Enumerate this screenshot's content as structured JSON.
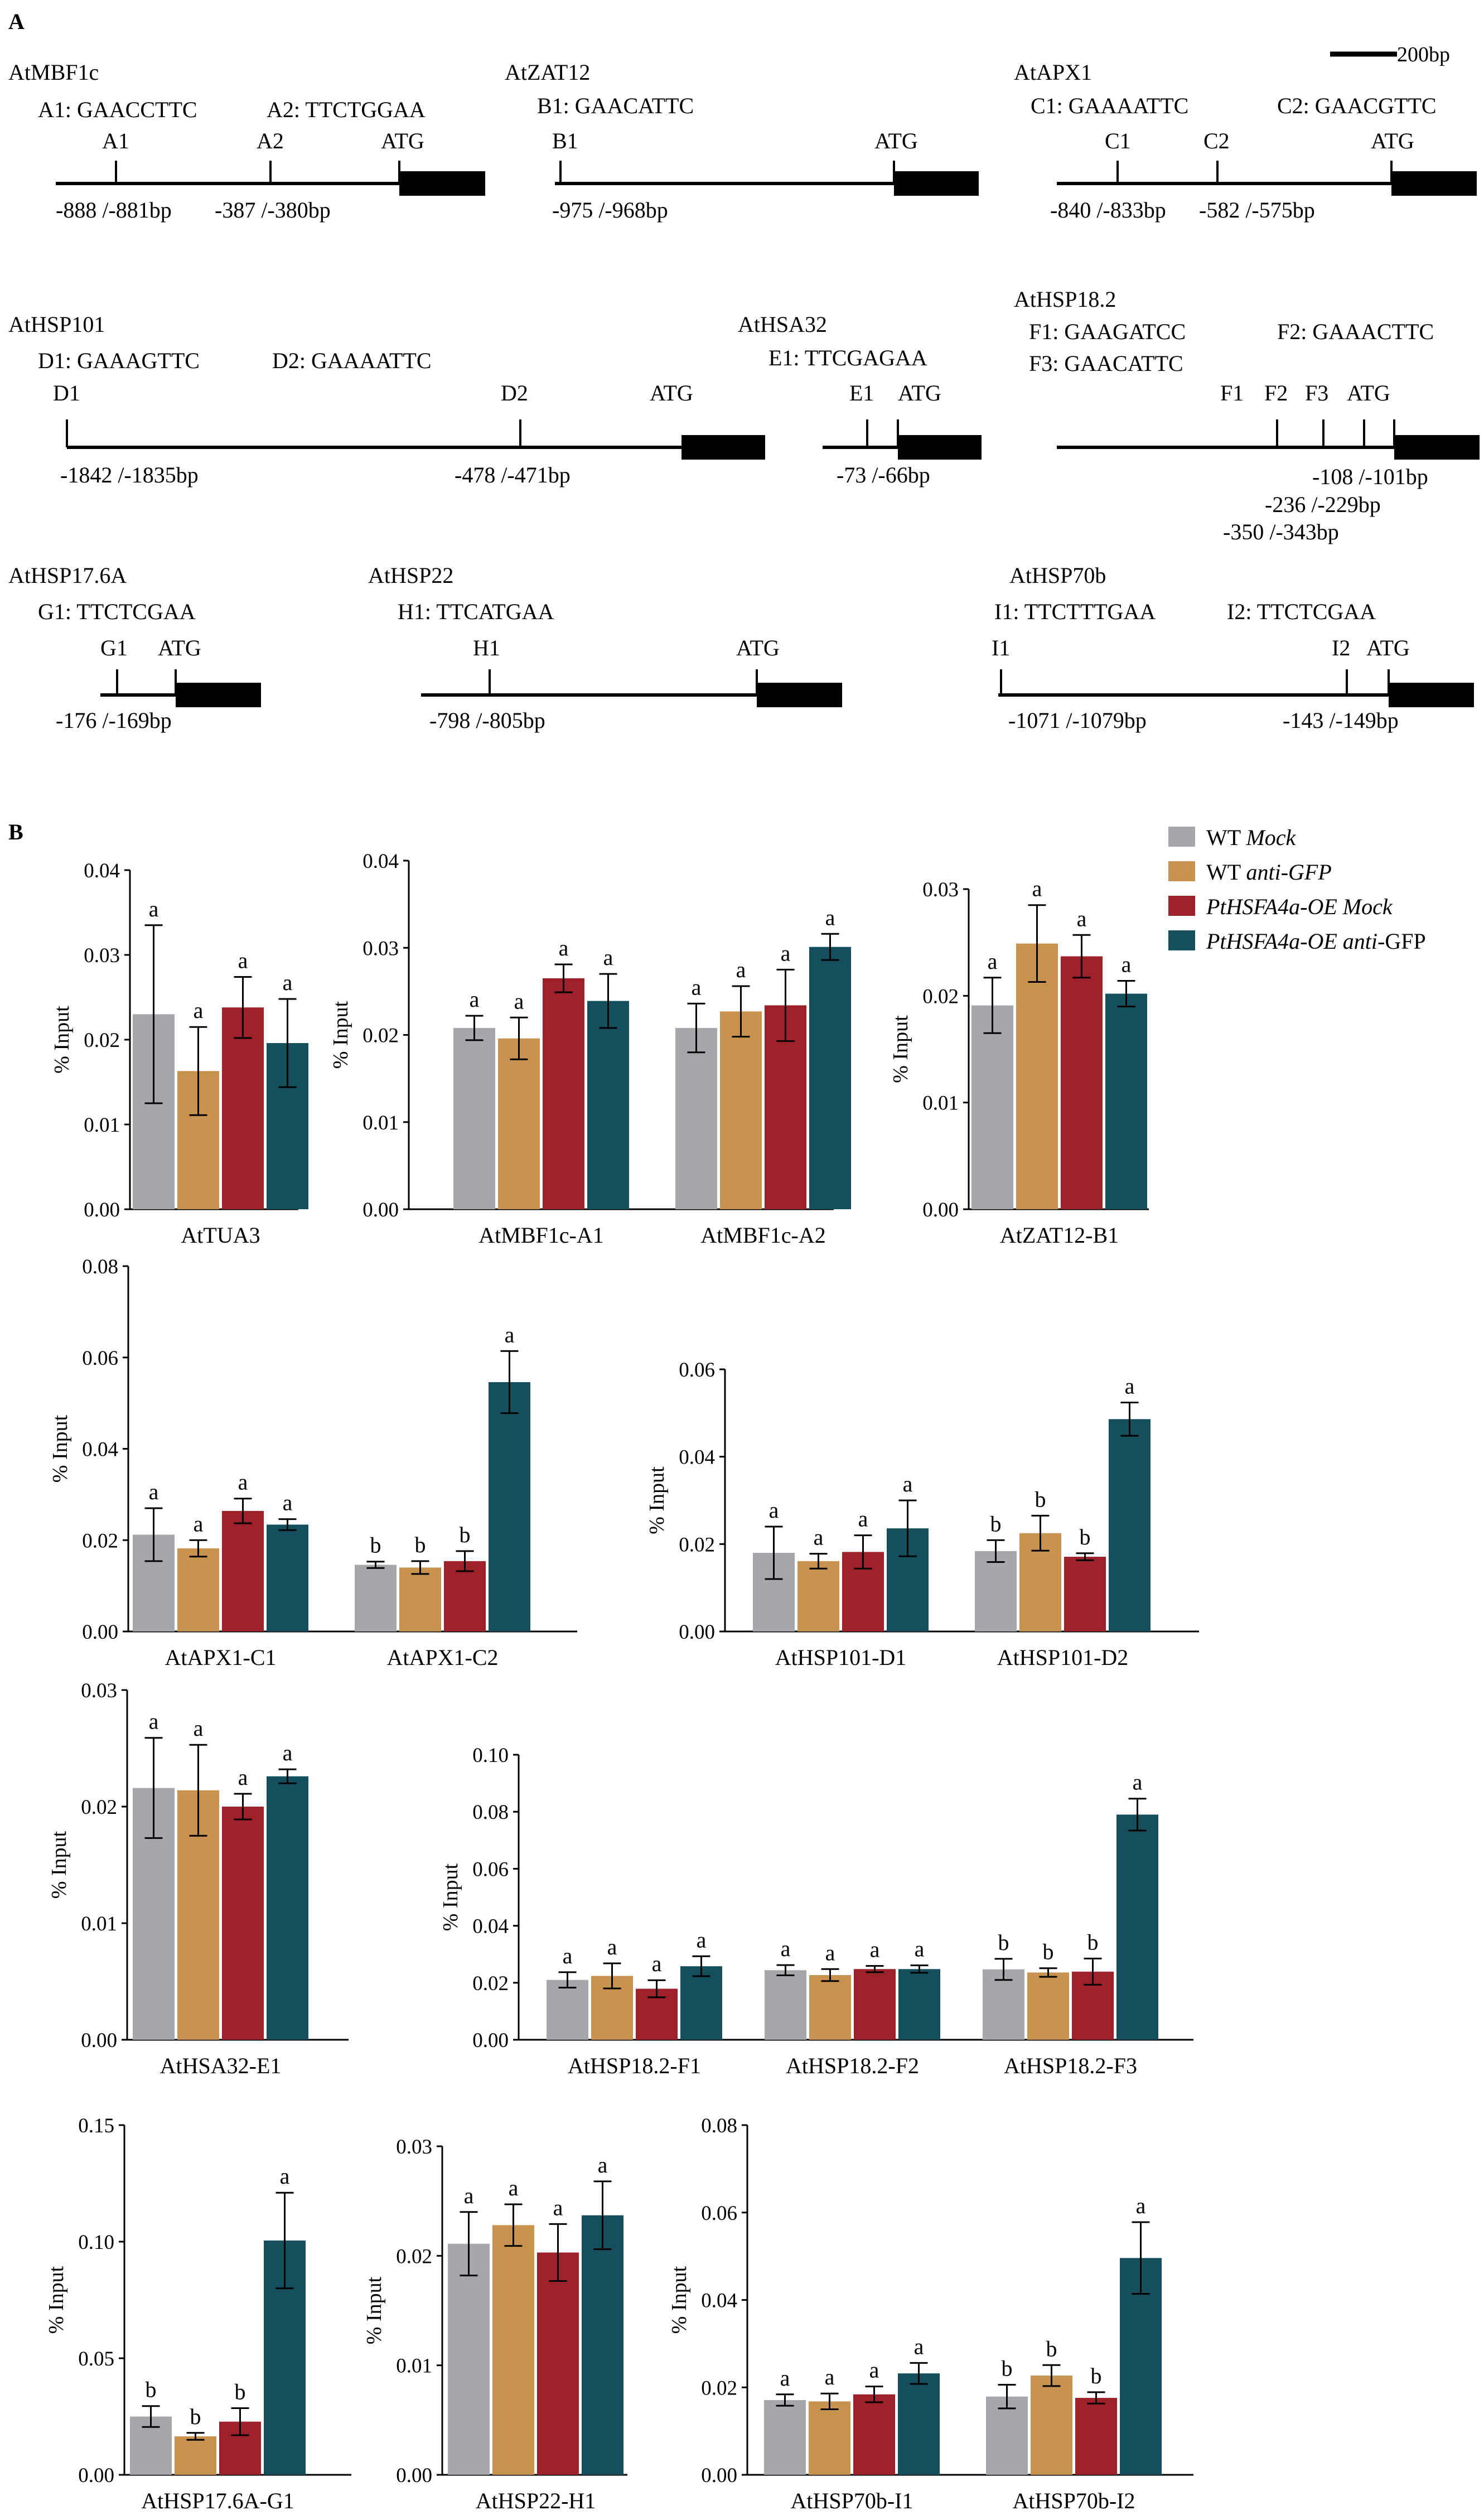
{
  "panelA": {
    "label": "A",
    "scale": "200bp",
    "genes": [
      {
        "name": "AtMBF1c",
        "elements": [
          "A1: GAACCTTC",
          "A2: TTCTGGAA"
        ],
        "marks": [
          "A1",
          "A2"
        ],
        "atg": "ATG",
        "positions": [
          "-888 /-881bp",
          "-387 /-380bp"
        ]
      },
      {
        "name": "AtZAT12",
        "elements": [
          "B1: GAACATTC"
        ],
        "marks": [
          "B1"
        ],
        "atg": "ATG",
        "positions": [
          "-975 /-968bp"
        ]
      },
      {
        "name": "AtAPX1",
        "elements": [
          "C1: GAAAATTC",
          "C2: GAACGTTC"
        ],
        "marks": [
          "C1",
          "C2"
        ],
        "atg": "ATG",
        "positions": [
          "-840 /-833bp",
          "-582 /-575bp"
        ]
      },
      {
        "name": "AtHSP101",
        "elements": [
          "D1: GAAAGTTC",
          "D2: GAAAATTC"
        ],
        "marks": [
          "D1",
          "D2"
        ],
        "atg": "ATG",
        "positions": [
          "-1842  /-1835bp",
          "-478  /-471bp"
        ]
      },
      {
        "name": "AtHSA32",
        "elements": [
          "E1: TTCGAGAA"
        ],
        "marks": [
          "E1"
        ],
        "atg": "ATG",
        "positions": [
          "-73 /-66bp"
        ]
      },
      {
        "name": "AtHSP18.2",
        "elements": [
          "F1: GAAGATCC",
          "F2: GAAACTTC",
          "F3: GAACATTC"
        ],
        "marks": [
          "F1",
          "F2",
          "F3"
        ],
        "atg": "ATG",
        "positions": [
          "-108 /-101bp",
          "-236 /-229bp",
          "-350 /-343bp"
        ]
      },
      {
        "name": "AtHSP17.6A",
        "elements": [
          "G1: TTCTCGAA"
        ],
        "marks": [
          "G1"
        ],
        "atg": "ATG",
        "positions": [
          "-176 /-169bp"
        ]
      },
      {
        "name": "AtHSP22",
        "elements": [
          "H1: TTCATGAA"
        ],
        "marks": [
          "H1"
        ],
        "atg": "ATG",
        "positions": [
          "-798 /-805bp"
        ]
      },
      {
        "name": "AtHSP70b",
        "elements": [
          "I1: TTCTTTGAA",
          "I2: TTCTCGAA"
        ],
        "marks": [
          "I1",
          "I2"
        ],
        "atg": "ATG",
        "positions": [
          "-1071 /-1079bp",
          "-143 /-149bp"
        ]
      }
    ]
  },
  "panelB": {
    "label": "B",
    "legend": [
      {
        "name": "WT",
        "suffix": "Mock",
        "color": "#a7a6ab"
      },
      {
        "name": "WT",
        "suffix": "anti-GFP",
        "color": "#c8924f"
      },
      {
        "name": "PtHSFA4a-OE",
        "suffix": "Mock",
        "color": "#9c2129"
      },
      {
        "name": "PtHSFA4a-OE",
        "suffix": "anti-GFP",
        "color": "#154f5e"
      }
    ]
  },
  "chart_data": [
    {
      "type": "bar",
      "ylabel": "% Input",
      "ylim": [
        0,
        0.04
      ],
      "ticks": [
        "0.00",
        "0.01",
        "0.02",
        "0.03",
        "0.04"
      ],
      "categories": [
        "AtTUA3"
      ],
      "series": [
        {
          "name": "WT Mock",
          "values": [
            0.023
          ],
          "errors": [
            0.0105
          ],
          "letters": [
            "a"
          ]
        },
        {
          "name": "WT anti-GFP",
          "values": [
            0.0163
          ],
          "errors": [
            0.0052
          ],
          "letters": [
            "a"
          ]
        },
        {
          "name": "PtHSFA4a-OE Mock",
          "values": [
            0.0238
          ],
          "errors": [
            0.0036
          ],
          "letters": [
            "a"
          ]
        },
        {
          "name": "PtHSFA4a-OE anti-GFP",
          "values": [
            0.0196
          ],
          "errors": [
            0.0052
          ],
          "letters": [
            "a"
          ]
        }
      ]
    },
    {
      "type": "bar",
      "ylabel": "% Input",
      "ylim": [
        0,
        0.04
      ],
      "ticks": [
        "0.00",
        "0.01",
        "0.02",
        "0.03",
        "0.04"
      ],
      "categories": [
        "AtMBF1c-A1",
        "AtMBF1c-A2"
      ],
      "series": [
        {
          "name": "WT Mock",
          "values": [
            0.0208,
            0.0208
          ],
          "errors": [
            0.0014,
            0.0028
          ],
          "letters": [
            "a",
            "a"
          ]
        },
        {
          "name": "WT anti-GFP",
          "values": [
            0.0196,
            0.0227
          ],
          "errors": [
            0.0024,
            0.0029
          ],
          "letters": [
            "a",
            "a"
          ]
        },
        {
          "name": "PtHSFA4a-OE Mock",
          "values": [
            0.0265,
            0.0234
          ],
          "errors": [
            0.0016,
            0.0041
          ],
          "letters": [
            "a",
            "a"
          ]
        },
        {
          "name": "PtHSFA4a-OE anti-GFP",
          "values": [
            0.0239,
            0.0301
          ],
          "errors": [
            0.0031,
            0.0015
          ],
          "letters": [
            "a",
            "a"
          ]
        }
      ]
    },
    {
      "type": "bar",
      "ylabel": "% Input",
      "ylim": [
        0,
        0.03
      ],
      "ticks": [
        "0.00",
        "0.01",
        "0.02",
        "0.03"
      ],
      "categories": [
        "AtZAT12-B1"
      ],
      "series": [
        {
          "name": "WT Mock",
          "values": [
            0.0191
          ],
          "errors": [
            0.0026
          ],
          "letters": [
            "a"
          ]
        },
        {
          "name": "WT anti-GFP",
          "values": [
            0.0249
          ],
          "errors": [
            0.0036
          ],
          "letters": [
            "a"
          ]
        },
        {
          "name": "PtHSFA4a-OE Mock",
          "values": [
            0.0237
          ],
          "errors": [
            0.002
          ],
          "letters": [
            "a"
          ]
        },
        {
          "name": "PtHSFA4a-OE anti-GFP",
          "values": [
            0.0202
          ],
          "errors": [
            0.0012
          ],
          "letters": [
            "a"
          ]
        }
      ]
    },
    {
      "type": "bar",
      "ylabel": "% Input",
      "ylim": [
        0,
        0.08
      ],
      "ticks": [
        "0.00",
        "0.02",
        "0.04",
        "0.06",
        "0.08"
      ],
      "categories": [
        "AtAPX1-C1",
        "AtAPX1-C2"
      ],
      "series": [
        {
          "name": "WT Mock",
          "values": [
            0.0212,
            0.0146
          ],
          "errors": [
            0.0058,
            0.0007
          ],
          "letters": [
            "a",
            "b"
          ]
        },
        {
          "name": "WT anti-GFP",
          "values": [
            0.0182,
            0.014
          ],
          "errors": [
            0.0018,
            0.0014
          ],
          "letters": [
            "a",
            "b"
          ]
        },
        {
          "name": "PtHSFA4a-OE Mock",
          "values": [
            0.0264,
            0.0154
          ],
          "errors": [
            0.0027,
            0.0022
          ],
          "letters": [
            "a",
            "b"
          ]
        },
        {
          "name": "PtHSFA4a-OE anti-GFP",
          "values": [
            0.0234,
            0.0546
          ],
          "errors": [
            0.0012,
            0.0068
          ],
          "letters": [
            "a",
            "a"
          ]
        }
      ]
    },
    {
      "type": "bar",
      "ylabel": "% Input",
      "ylim": [
        0,
        0.06
      ],
      "ticks": [
        "0.00",
        "0.02",
        "0.04",
        "0.06"
      ],
      "categories": [
        "AtHSP101-D1",
        "AtHSP101-D2"
      ],
      "series": [
        {
          "name": "WT Mock",
          "values": [
            0.018,
            0.0184
          ],
          "errors": [
            0.006,
            0.0025
          ],
          "letters": [
            "a",
            "b"
          ]
        },
        {
          "name": "WT anti-GFP",
          "values": [
            0.0161,
            0.0225
          ],
          "errors": [
            0.0017,
            0.004
          ],
          "letters": [
            "a",
            "b"
          ]
        },
        {
          "name": "PtHSFA4a-OE Mock",
          "values": [
            0.0182,
            0.0171
          ],
          "errors": [
            0.0038,
            0.0008
          ],
          "letters": [
            "a",
            "b"
          ]
        },
        {
          "name": "PtHSFA4a-OE anti-GFP",
          "values": [
            0.0236,
            0.0486
          ],
          "errors": [
            0.0064,
            0.0038
          ],
          "letters": [
            "a",
            "a"
          ]
        }
      ]
    },
    {
      "type": "bar",
      "ylabel": "% Input",
      "ylim": [
        0,
        0.03
      ],
      "ticks": [
        "0.00",
        "0.01",
        "0.02",
        "0.03"
      ],
      "categories": [
        "AtHSA32-E1"
      ],
      "series": [
        {
          "name": "WT Mock",
          "values": [
            0.0216
          ],
          "errors": [
            0.0043
          ],
          "letters": [
            "a"
          ]
        },
        {
          "name": "WT anti-GFP",
          "values": [
            0.0214
          ],
          "errors": [
            0.0039
          ],
          "letters": [
            "a"
          ]
        },
        {
          "name": "PtHSFA4a-OE Mock",
          "values": [
            0.02
          ],
          "errors": [
            0.0011
          ],
          "letters": [
            "a"
          ]
        },
        {
          "name": "PtHSFA4a-OE anti-GFP",
          "values": [
            0.0226
          ],
          "errors": [
            0.0006
          ],
          "letters": [
            "a"
          ]
        }
      ]
    },
    {
      "type": "bar",
      "ylabel": "% Input",
      "ylim": [
        0,
        0.1
      ],
      "ticks": [
        "0.00",
        "0.02",
        "0.04",
        "0.06",
        "0.08",
        "0.10"
      ],
      "categories": [
        "AtHSP18.2-F1",
        "AtHSP18.2-F2",
        "AtHSP18.2-F3"
      ],
      "series": [
        {
          "name": "WT Mock",
          "values": [
            0.021,
            0.0244,
            0.0247
          ],
          "errors": [
            0.0027,
            0.0018,
            0.0037
          ],
          "letters": [
            "a",
            "a",
            "b"
          ]
        },
        {
          "name": "WT anti-GFP",
          "values": [
            0.0224,
            0.0227,
            0.0236
          ],
          "errors": [
            0.0044,
            0.0021,
            0.0015
          ],
          "letters": [
            "a",
            "a",
            "b"
          ]
        },
        {
          "name": "PtHSFA4a-OE Mock",
          "values": [
            0.0179,
            0.0248,
            0.0239
          ],
          "errors": [
            0.003,
            0.0011,
            0.0046
          ],
          "letters": [
            "a",
            "a",
            "b"
          ]
        },
        {
          "name": "PtHSFA4a-OE anti-GFP",
          "values": [
            0.0258,
            0.0248,
            0.079
          ],
          "errors": [
            0.0035,
            0.0013,
            0.0056
          ],
          "letters": [
            "a",
            "a",
            "a"
          ]
        }
      ]
    },
    {
      "type": "bar",
      "ylabel": "% Input",
      "ylim": [
        0,
        0.15
      ],
      "ticks": [
        "0.00",
        "0.05",
        "0.10",
        "0.15"
      ],
      "categories": [
        "AtHSP17.6A-G1"
      ],
      "series": [
        {
          "name": "WT Mock",
          "values": [
            0.025
          ],
          "errors": [
            0.0045
          ],
          "letters": [
            "b"
          ]
        },
        {
          "name": "WT anti-GFP",
          "values": [
            0.0165
          ],
          "errors": [
            0.0015
          ],
          "letters": [
            "b"
          ]
        },
        {
          "name": "PtHSFA4a-OE Mock",
          "values": [
            0.0228
          ],
          "errors": [
            0.0058
          ],
          "letters": [
            "b"
          ]
        },
        {
          "name": "PtHSFA4a-OE anti-GFP",
          "values": [
            0.1005
          ],
          "errors": [
            0.0205
          ],
          "letters": [
            "a"
          ]
        }
      ]
    },
    {
      "type": "bar",
      "ylabel": "% Input",
      "ylim": [
        0,
        0.03
      ],
      "ticks": [
        "0.00",
        "0.01",
        "0.02",
        "0.03"
      ],
      "categories": [
        "AtHSP22-H1"
      ],
      "series": [
        {
          "name": "WT Mock",
          "values": [
            0.0211
          ],
          "errors": [
            0.0029
          ],
          "letters": [
            "a"
          ]
        },
        {
          "name": "WT anti-GFP",
          "values": [
            0.0228
          ],
          "errors": [
            0.0019
          ],
          "letters": [
            "a"
          ]
        },
        {
          "name": "PtHSFA4a-OE Mock",
          "values": [
            0.0203
          ],
          "errors": [
            0.0026
          ],
          "letters": [
            "a"
          ]
        },
        {
          "name": "PtHSFA4a-OE anti-GFP",
          "values": [
            0.0237
          ],
          "errors": [
            0.0031
          ],
          "letters": [
            "a"
          ]
        }
      ]
    },
    {
      "type": "bar",
      "ylabel": "% Input",
      "ylim": [
        0,
        0.08
      ],
      "ticks": [
        "0.00",
        "0.02",
        "0.04",
        "0.06",
        "0.08"
      ],
      "categories": [
        "AtHSP70b-I1",
        "AtHSP70b-I2"
      ],
      "series": [
        {
          "name": "WT Mock",
          "values": [
            0.0171,
            0.0179
          ],
          "errors": [
            0.0013,
            0.0027
          ],
          "letters": [
            "a",
            "b"
          ]
        },
        {
          "name": "WT anti-GFP",
          "values": [
            0.0168,
            0.0227
          ],
          "errors": [
            0.0018,
            0.0024
          ],
          "letters": [
            "a",
            "b"
          ]
        },
        {
          "name": "PtHSFA4a-OE Mock",
          "values": [
            0.0184,
            0.0176
          ],
          "errors": [
            0.0018,
            0.0013
          ],
          "letters": [
            "a",
            "b"
          ]
        },
        {
          "name": "PtHSFA4a-OE anti-GFP",
          "values": [
            0.0232,
            0.0496
          ],
          "errors": [
            0.0024,
            0.0082
          ],
          "letters": [
            "a",
            "a"
          ]
        }
      ]
    }
  ]
}
